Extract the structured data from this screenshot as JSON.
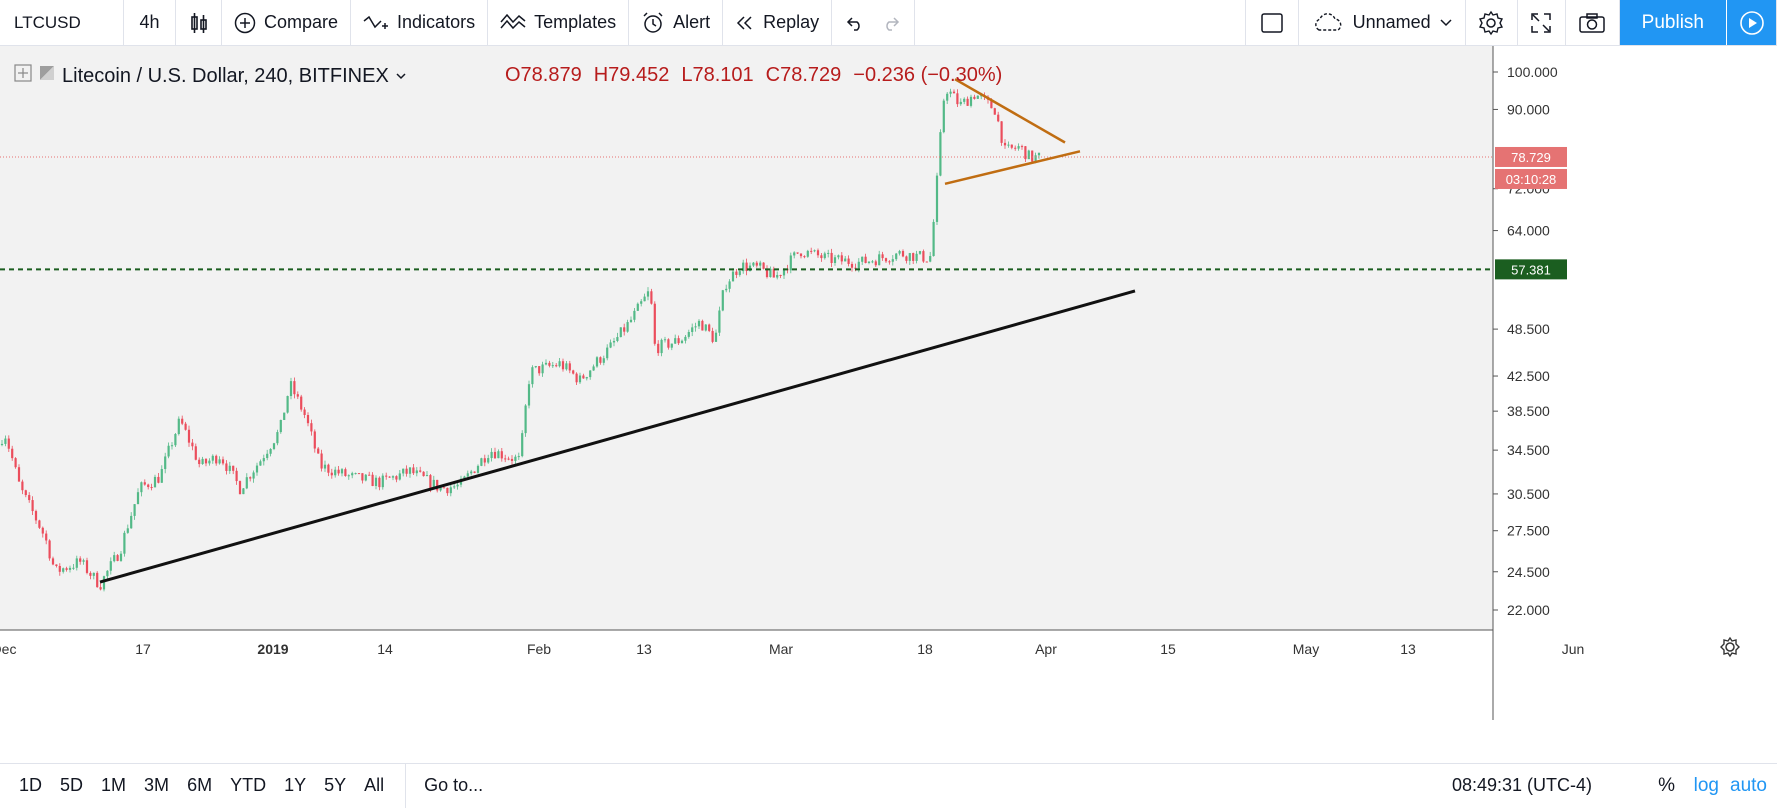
{
  "toolbar": {
    "symbol": "LTCUSD",
    "interval": "4h",
    "compare": "Compare",
    "indicators": "Indicators",
    "templates": "Templates",
    "alert": "Alert",
    "replay": "Replay",
    "layout_name": "Unnamed",
    "publish": "Publish"
  },
  "legend": {
    "title": "Litecoin / U.S. Dollar, 240, BITFINEX",
    "open": "O78.879",
    "high": "H79.452",
    "low": "L78.101",
    "close": "C78.729",
    "change": "−0.236 (−0.30%)"
  },
  "price_axis": [
    "100.000",
    "90.000",
    "72.000",
    "64.000",
    "48.500",
    "42.500",
    "38.500",
    "34.500",
    "30.500",
    "27.500",
    "24.500",
    "22.000"
  ],
  "price_tags": {
    "last": "78.729",
    "countdown": "03:10:28",
    "hline": "57.381"
  },
  "time_axis": [
    "Dec",
    "17",
    "2019",
    "14",
    "Feb",
    "13",
    "Mar",
    "18",
    "Apr",
    "15",
    "May",
    "13",
    "Jun"
  ],
  "bottom": {
    "ranges": [
      "1D",
      "5D",
      "1M",
      "3M",
      "6M",
      "YTD",
      "1Y",
      "5Y",
      "All"
    ],
    "goto": "Go to...",
    "clock": "08:49:31 (UTC-4)",
    "percent": "%",
    "log": "log",
    "auto": "auto"
  },
  "colors": {
    "up": "#53b987",
    "down": "#eb4d5c",
    "accent": "#2196f3",
    "triangle": "#c06d12",
    "hline": "#1b5e20",
    "last": "#e57373"
  },
  "chart_data": {
    "type": "candlestick",
    "title": "Litecoin / U.S. Dollar, 240, BITFINEX",
    "ylim": [
      21,
      102
    ],
    "log_scale": true,
    "anchors": [
      [
        0,
        35
      ],
      [
        4,
        36.5
      ],
      [
        20,
        31
      ],
      [
        45,
        27
      ],
      [
        55,
        24.5
      ],
      [
        80,
        25.2
      ],
      [
        100,
        23.6
      ],
      [
        120,
        26
      ],
      [
        140,
        31
      ],
      [
        160,
        32
      ],
      [
        180,
        37.5
      ],
      [
        200,
        33
      ],
      [
        220,
        34
      ],
      [
        240,
        31
      ],
      [
        260,
        33.5
      ],
      [
        280,
        36.5
      ],
      [
        290,
        41.5
      ],
      [
        305,
        38
      ],
      [
        320,
        33
      ],
      [
        350,
        32
      ],
      [
        380,
        31.5
      ],
      [
        410,
        32.5
      ],
      [
        440,
        31
      ],
      [
        460,
        31.2
      ],
      [
        490,
        34.5
      ],
      [
        520,
        33.5
      ],
      [
        530,
        43
      ],
      [
        560,
        44
      ],
      [
        580,
        42
      ],
      [
        610,
        46
      ],
      [
        630,
        49.5
      ],
      [
        650,
        54
      ],
      [
        655,
        46
      ],
      [
        680,
        47
      ],
      [
        700,
        49.5
      ],
      [
        715,
        47
      ],
      [
        725,
        55
      ],
      [
        740,
        58
      ],
      [
        760,
        57.5
      ],
      [
        775,
        56
      ],
      [
        800,
        60.5
      ],
      [
        830,
        59
      ],
      [
        860,
        58.5
      ],
      [
        900,
        60
      ],
      [
        930,
        59.2
      ],
      [
        935,
        68
      ],
      [
        945,
        96
      ],
      [
        960,
        91
      ],
      [
        975,
        94
      ],
      [
        995,
        90
      ],
      [
        1005,
        80
      ],
      [
        1020,
        81
      ],
      [
        1030,
        78.5
      ],
      [
        1040,
        78.7
      ]
    ],
    "trendlines": [
      {
        "from": [
          100,
          23.8
        ],
        "to": [
          1135,
          54
        ]
      },
      {
        "from": [
          955,
          98
        ],
        "to": [
          1065,
          82
        ]
      },
      {
        "from": [
          945,
          73
        ],
        "to": [
          1080,
          80
        ]
      }
    ],
    "hline": 57.381
  }
}
